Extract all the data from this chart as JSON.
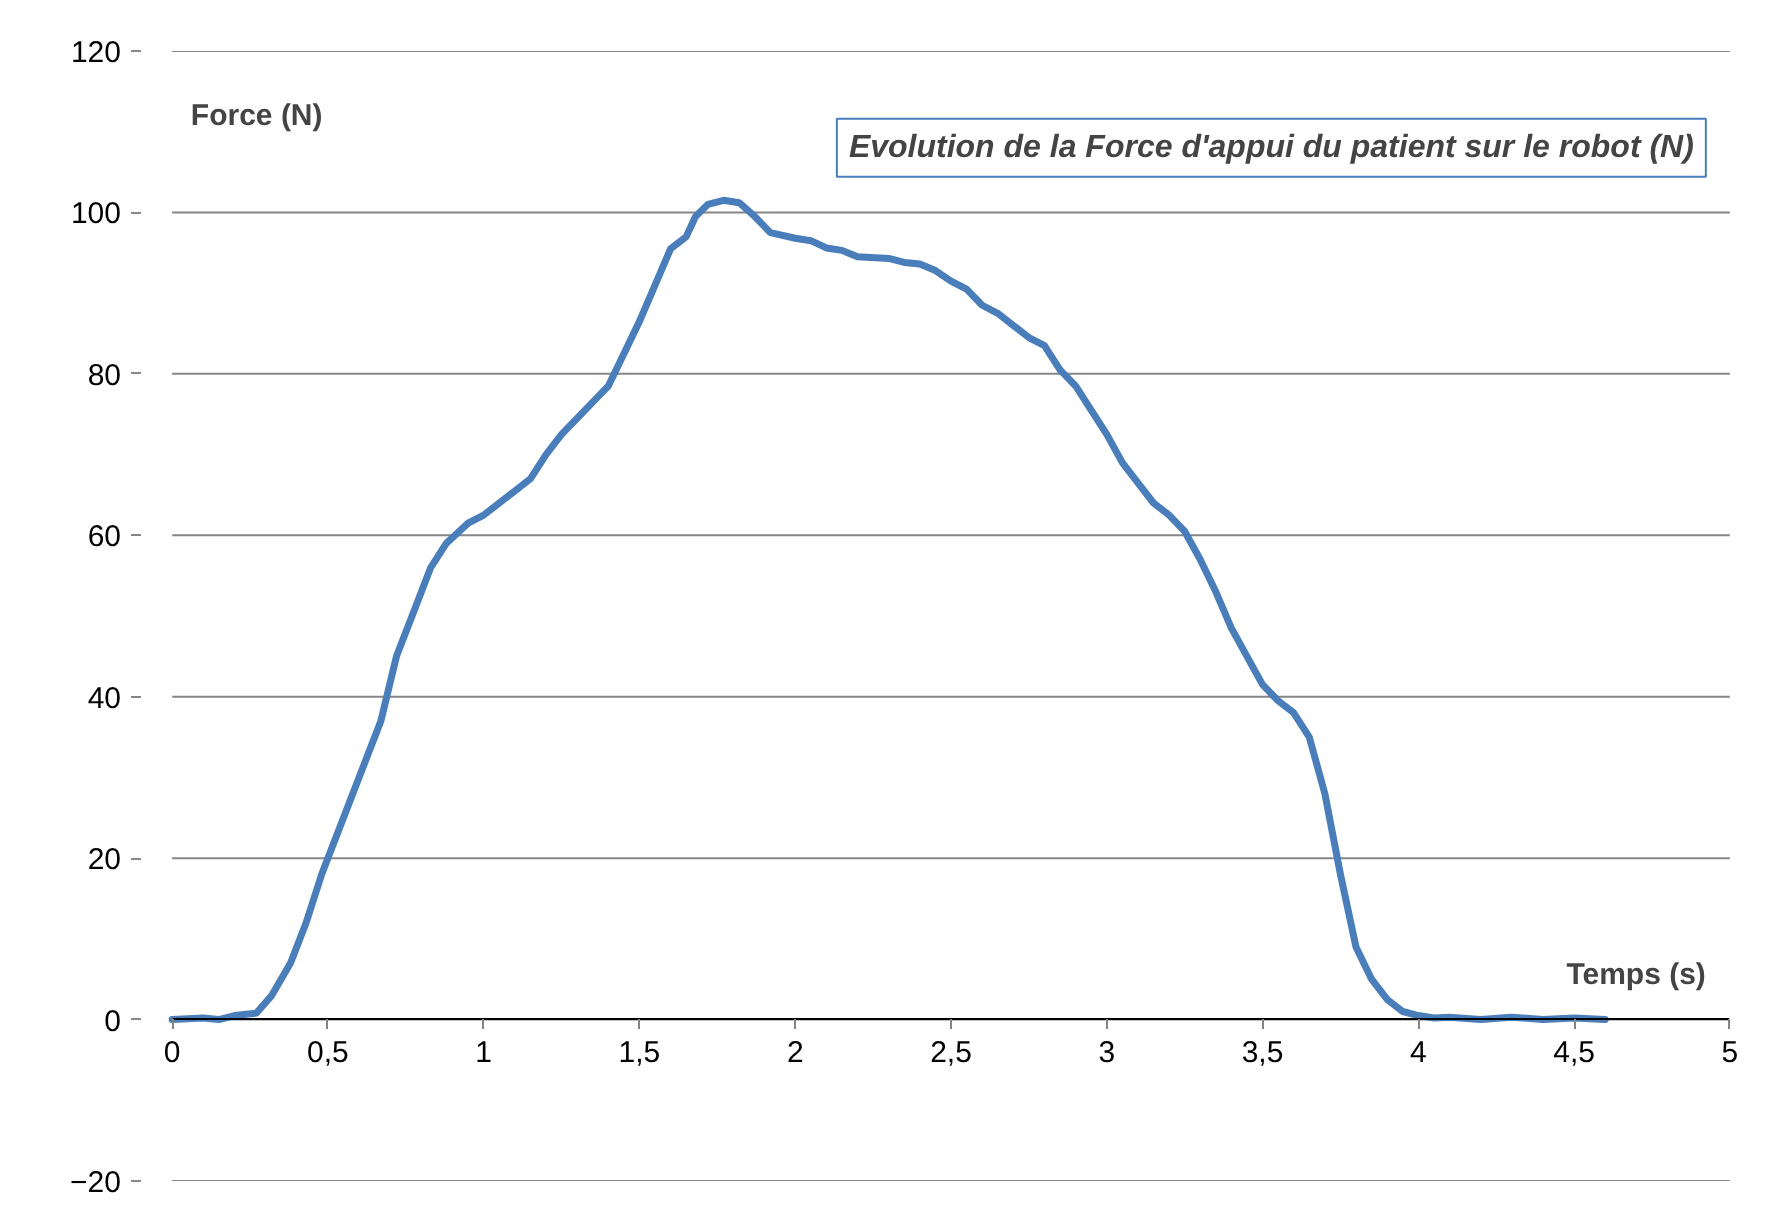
{
  "chart_data": {
    "type": "line",
    "xlabel": "Temps (s)",
    "ylabel": "Force (N)",
    "annotations": [
      "Evolution de la Force d'appui du patient sur le robot (N)"
    ],
    "xlim": [
      0,
      5
    ],
    "ylim": [
      -20,
      120
    ],
    "xticks": [
      0,
      {
        "value": 0.5,
        "label": "0,5"
      },
      1,
      {
        "value": 1.5,
        "label": "1,5"
      },
      2,
      {
        "value": 2.5,
        "label": "2,5"
      },
      3,
      {
        "value": 3.5,
        "label": "3,5"
      },
      4,
      {
        "value": 4.5,
        "label": "4,5"
      },
      5
    ],
    "yticks": [
      -20,
      0,
      20,
      40,
      60,
      80,
      100,
      120
    ],
    "grid": "y",
    "marker": "none",
    "line_style": "solid",
    "series": [
      {
        "color": "#4a7ebb",
        "x": [
          0,
          0.1,
          0.15,
          0.2,
          0.27,
          0.32,
          0.38,
          0.43,
          0.48,
          0.55,
          0.62,
          0.67,
          0.72,
          0.78,
          0.83,
          0.88,
          0.95,
          1.0,
          1.05,
          1.1,
          1.15,
          1.2,
          1.25,
          1.3,
          1.35,
          1.4,
          1.45,
          1.5,
          1.55,
          1.6,
          1.65,
          1.68,
          1.72,
          1.77,
          1.82,
          1.87,
          1.92,
          2.0,
          2.05,
          2.1,
          2.15,
          2.2,
          2.3,
          2.35,
          2.4,
          2.45,
          2.5,
          2.55,
          2.6,
          2.65,
          2.7,
          2.75,
          2.8,
          2.85,
          2.9,
          2.95,
          3.0,
          3.05,
          3.1,
          3.15,
          3.2,
          3.25,
          3.3,
          3.35,
          3.4,
          3.45,
          3.5,
          3.55,
          3.6,
          3.65,
          3.7,
          3.75,
          3.8,
          3.85,
          3.9,
          3.95,
          4.0,
          4.05,
          4.1,
          4.2,
          4.3,
          4.4,
          4.5,
          4.6
        ],
        "values": [
          0,
          0.2,
          0,
          0.5,
          0.8,
          3,
          7,
          12,
          18,
          25,
          32,
          37,
          45,
          51,
          56,
          59,
          61.5,
          62.5,
          64,
          65.5,
          67,
          70,
          72.5,
          74.5,
          76.5,
          78.5,
          82.5,
          86.5,
          91,
          95.5,
          97,
          99.5,
          101,
          101.5,
          101.2,
          99.5,
          97.5,
          96.8,
          96.5,
          95.6,
          95.3,
          94.5,
          94.3,
          93.8,
          93.6,
          92.8,
          91.5,
          90.5,
          88.5,
          87.5,
          86,
          84.5,
          83.5,
          80.5,
          78.5,
          75.5,
          72.5,
          69,
          66.5,
          64,
          62.5,
          60.5,
          57,
          53,
          48.5,
          45,
          41.5,
          39.5,
          38,
          35,
          28,
          18,
          9,
          5,
          2.5,
          1,
          0.5,
          0.2,
          0.3,
          0,
          0.3,
          0,
          0.2,
          0
        ]
      }
    ]
  }
}
